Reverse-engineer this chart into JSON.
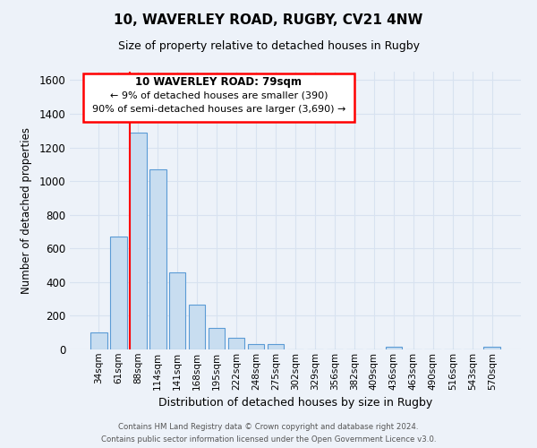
{
  "title": "10, WAVERLEY ROAD, RUGBY, CV21 4NW",
  "subtitle": "Size of property relative to detached houses in Rugby",
  "xlabel": "Distribution of detached houses by size in Rugby",
  "ylabel": "Number of detached properties",
  "bar_color": "#c8ddf0",
  "bar_edge_color": "#5b9bd5",
  "background_color": "#edf2f9",
  "grid_color": "#d8e2f0",
  "categories": [
    "34sqm",
    "61sqm",
    "88sqm",
    "114sqm",
    "141sqm",
    "168sqm",
    "195sqm",
    "222sqm",
    "248sqm",
    "275sqm",
    "302sqm",
    "329sqm",
    "356sqm",
    "382sqm",
    "409sqm",
    "436sqm",
    "463sqm",
    "490sqm",
    "516sqm",
    "543sqm",
    "570sqm"
  ],
  "values": [
    100,
    670,
    1290,
    1070,
    460,
    265,
    130,
    70,
    30,
    30,
    0,
    0,
    0,
    0,
    0,
    15,
    0,
    0,
    0,
    0,
    15
  ],
  "ylim": [
    0,
    1650
  ],
  "yticks": [
    0,
    200,
    400,
    600,
    800,
    1000,
    1200,
    1400,
    1600
  ],
  "red_line_bar_index": 2,
  "bar_width": 0.85,
  "annotation_title": "10 WAVERLEY ROAD: 79sqm",
  "annotation_line1": "← 9% of detached houses are smaller (390)",
  "annotation_line2": "90% of semi-detached houses are larger (3,690) →",
  "footer_line1": "Contains HM Land Registry data © Crown copyright and database right 2024.",
  "footer_line2": "Contains public sector information licensed under the Open Government Licence v3.0."
}
